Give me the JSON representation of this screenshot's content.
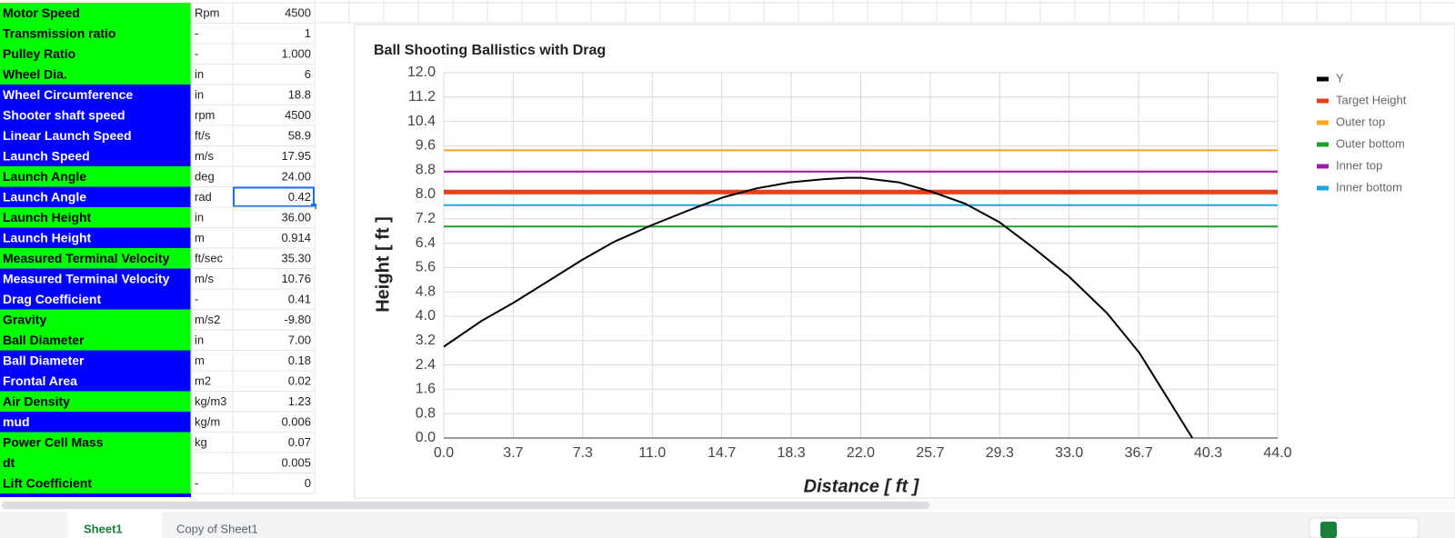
{
  "sheet": {
    "rows": [
      {
        "label": "Motor Speed",
        "unit": "Rpm",
        "value": "4500",
        "color": "#00ff00"
      },
      {
        "label": "Transmission ratio",
        "unit": "-",
        "value": "1",
        "color": "#00ff00"
      },
      {
        "label": "Pulley Ratio",
        "unit": "-",
        "value": "1.000",
        "color": "#00ff00"
      },
      {
        "label": "Wheel Dia.",
        "unit": "in",
        "value": "6",
        "color": "#00ff00"
      },
      {
        "label": "Wheel Circumference",
        "unit": "in",
        "value": "18.8",
        "color": "#0000ff"
      },
      {
        "label": "Shooter shaft speed",
        "unit": "rpm",
        "value": "4500",
        "color": "#0000ff"
      },
      {
        "label": "Linear Launch Speed",
        "unit": "ft/s",
        "value": "58.9",
        "color": "#0000ff"
      },
      {
        "label": "Launch Speed",
        "unit": "m/s",
        "value": "17.95",
        "color": "#0000ff"
      },
      {
        "label": "Launch Angle",
        "unit": "deg",
        "value": "24.00",
        "color": "#00ff00"
      },
      {
        "label": "Launch Angle",
        "unit": "rad",
        "value": "0.42",
        "color": "#0000ff",
        "selected": true
      },
      {
        "label": "Launch Height",
        "unit": "in",
        "value": "36.00",
        "color": "#00ff00"
      },
      {
        "label": "Launch Height",
        "unit": "m",
        "value": "0.914",
        "color": "#0000ff"
      },
      {
        "label": "Measured Terminal Velocity",
        "unit": "ft/sec",
        "value": "35.30",
        "color": "#00ff00"
      },
      {
        "label": "Measured Terminal Velocity",
        "unit": "m/s",
        "value": "10.76",
        "color": "#0000ff"
      },
      {
        "label": "Drag Coefficient",
        "unit": "-",
        "value": "0.41",
        "color": "#0000ff"
      },
      {
        "label": "Gravity",
        "unit": "m/s2",
        "value": "-9.80",
        "color": "#00ff00"
      },
      {
        "label": "Ball Diameter",
        "unit": "in",
        "value": "7.00",
        "color": "#00ff00"
      },
      {
        "label": "Ball Diameter",
        "unit": "m",
        "value": "0.18",
        "color": "#0000ff"
      },
      {
        "label": "Frontal Area",
        "unit": "m2",
        "value": "0.02",
        "color": "#0000ff"
      },
      {
        "label": "Air Density",
        "unit": "kg/m3",
        "value": "1.23",
        "color": "#00ff00"
      },
      {
        "label": "mud",
        "unit": "kg/m",
        "value": "0.006",
        "color": "#0000ff"
      },
      {
        "label": "Power Cell Mass",
        "unit": "kg",
        "value": "0.07",
        "color": "#00ff00"
      },
      {
        "label": "dt",
        "value": "0.005",
        "color": "#00ff00"
      },
      {
        "label": "Lift Coefficient",
        "unit": "-",
        "value": "0",
        "color": "#00ff00"
      }
    ]
  },
  "tabs": [
    "Sheet1",
    "Copy of Sheet1"
  ],
  "chart_data": {
    "type": "line",
    "title": "Ball Shooting Ballistics with Drag",
    "x_label": "Distance [ ft ]",
    "y_label": "Height [ ft ]",
    "xlim": [
      0,
      44
    ],
    "ylim": [
      0,
      12
    ],
    "xticks": [
      {
        "value": 0,
        "label": "0.0"
      },
      {
        "value": 3.667,
        "label": "3.7"
      },
      {
        "value": 7.333,
        "label": "7.3"
      },
      {
        "value": 11,
        "label": "11.0"
      },
      {
        "value": 14.667,
        "label": "14.7"
      },
      {
        "value": 18.333,
        "label": "18.3"
      },
      {
        "value": 22,
        "label": "22.0"
      },
      {
        "value": 25.667,
        "label": "25.7"
      },
      {
        "value": 29.333,
        "label": "29.3"
      },
      {
        "value": 33,
        "label": "33.0"
      },
      {
        "value": 36.667,
        "label": "36.7"
      },
      {
        "value": 40.333,
        "label": "40.3"
      },
      {
        "value": 44,
        "label": "44.0"
      }
    ],
    "yticks": [
      {
        "value": 0,
        "label": "0.0"
      },
      {
        "value": 0.8,
        "label": "0.8"
      },
      {
        "value": 1.6,
        "label": "1.6"
      },
      {
        "value": 2.4,
        "label": "2.4"
      },
      {
        "value": 3.2,
        "label": "3.2"
      },
      {
        "value": 4,
        "label": "4.0"
      },
      {
        "value": 4.8,
        "label": "4.8"
      },
      {
        "value": 5.6,
        "label": "5.6"
      },
      {
        "value": 6.4,
        "label": "6.4"
      },
      {
        "value": 7.2,
        "label": "7.2"
      },
      {
        "value": 8,
        "label": "8.0"
      },
      {
        "value": 8.8,
        "label": "8.8"
      },
      {
        "value": 9.6,
        "label": "9.6"
      },
      {
        "value": 10.4,
        "label": "10.4"
      },
      {
        "value": 11.2,
        "label": "11.2"
      },
      {
        "value": 12,
        "label": "12.0"
      }
    ],
    "grid": true,
    "legend": "right",
    "series": [
      {
        "name": "Y",
        "color": "#000000",
        "width": 2,
        "x": [
          0,
          2,
          3.7,
          5.5,
          7.3,
          9,
          11,
          13,
          14.7,
          16.5,
          18.3,
          20,
          21.3,
          22,
          24,
          25.7,
          27.5,
          29.3,
          31,
          33,
          35,
          36.7,
          38,
          39.5
        ],
        "values": [
          3.0,
          3.85,
          4.45,
          5.15,
          5.85,
          6.45,
          7.0,
          7.5,
          7.9,
          8.2,
          8.4,
          8.5,
          8.55,
          8.55,
          8.4,
          8.1,
          7.7,
          7.1,
          6.3,
          5.3,
          4.1,
          2.8,
          1.5,
          0.0
        ]
      },
      {
        "name": "Target Height",
        "color": "#e8401c",
        "width": 5,
        "x": [
          0,
          44
        ],
        "values": [
          8.08,
          8.08
        ]
      },
      {
        "name": "Outer top",
        "color": "#f6a31e",
        "width": 2,
        "x": [
          0,
          44
        ],
        "values": [
          9.45,
          9.45
        ]
      },
      {
        "name": "Outer bottom",
        "color": "#1e9e2a",
        "width": 2,
        "x": [
          0,
          44
        ],
        "values": [
          6.95,
          6.95
        ]
      },
      {
        "name": "Inner top",
        "color": "#a21ca8",
        "width": 2,
        "x": [
          0,
          44
        ],
        "values": [
          8.75,
          8.75
        ]
      },
      {
        "name": "Inner bottom",
        "color": "#1ea6d9",
        "width": 2,
        "x": [
          0,
          44
        ],
        "values": [
          7.65,
          7.65
        ]
      }
    ]
  }
}
